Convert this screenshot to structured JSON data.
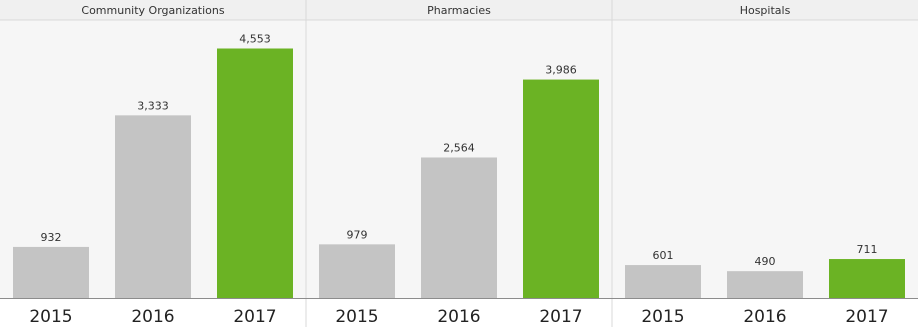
{
  "chart_data": {
    "type": "bar",
    "panels": [
      {
        "title": "Community Organizations",
        "categories": [
          "2015",
          "2016",
          "2017"
        ],
        "values": [
          932,
          3333,
          4553
        ],
        "labels": [
          "932",
          "3,333",
          "4,553"
        ]
      },
      {
        "title": "Pharmacies",
        "categories": [
          "2015",
          "2016",
          "2017"
        ],
        "values": [
          979,
          2564,
          3986
        ],
        "labels": [
          "979",
          "2,564",
          "3,986"
        ]
      },
      {
        "title": "Hospitals",
        "categories": [
          "2015",
          "2016",
          "2017"
        ],
        "values": [
          601,
          490,
          711
        ],
        "labels": [
          "601",
          "490",
          "711"
        ]
      }
    ],
    "ylim": [
      0,
      5000
    ],
    "grid": false,
    "colors": {
      "default_bar": "#c4c4c4",
      "highlight_bar": "#6bb324",
      "panel_background": "#f6f6f6",
      "header_background": "#f0f0f0",
      "divider": "#d9d9d9",
      "baseline": "#8c8c8c",
      "label_text": "#333333",
      "year_text": "#222222"
    },
    "highlight_category": "2017"
  }
}
